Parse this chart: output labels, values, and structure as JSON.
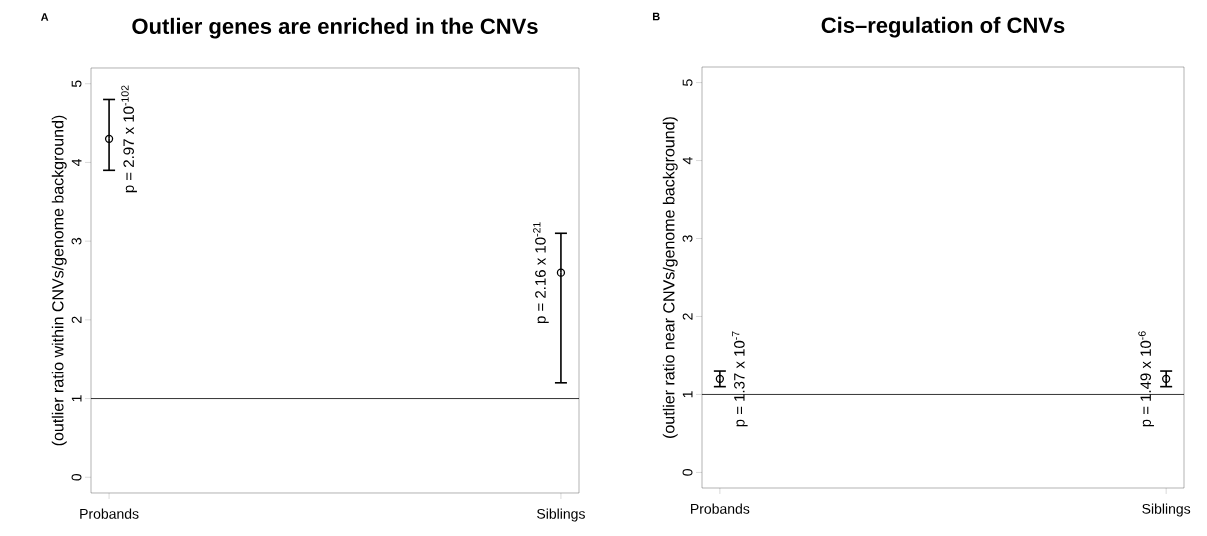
{
  "chart_data": [
    {
      "type": "scatter",
      "title": "Outlier genes are enriched in the CNVs",
      "ylabel": "(outlier ratio within CNVs/genome background)",
      "categories": [
        "Probands",
        "Siblings"
      ],
      "values": [
        4.3,
        2.6
      ],
      "errors": [
        [
          3.9,
          4.8
        ],
        [
          1.2,
          3.1
        ]
      ],
      "color": "#000000",
      "marker": "circle",
      "ylim": [
        -0.2,
        5.2
      ],
      "yticks": [
        0,
        1,
        2,
        3,
        4,
        5
      ],
      "ref_lines": [
        {
          "axis": "y",
          "value": 1,
          "color": "#000000"
        }
      ],
      "annotations": [
        "A",
        {
          "text": "p = 2.97 x 10$^{-102}$",
          "x": "Probands",
          "y": 4.3
        },
        {
          "text": "p = 2.16 x 10$^{-21}$",
          "x": "Siblings",
          "y": 2.6
        }
      ]
    },
    {
      "type": "scatter",
      "title": "Cis–regulation of CNVs",
      "ylabel": "(outlier ratio near CNVs/genome background)",
      "categories": [
        "Probands",
        "Siblings"
      ],
      "values": [
        1.2,
        1.2
      ],
      "errors": [
        [
          1.1,
          1.3
        ],
        [
          1.1,
          1.3
        ]
      ],
      "color": "#000000",
      "marker": "circle",
      "ylim": [
        -0.2,
        5.2
      ],
      "yticks": [
        0,
        1,
        2,
        3,
        4,
        5
      ],
      "ref_lines": [
        {
          "axis": "y",
          "value": 1,
          "color": "#000000"
        }
      ],
      "annotations": [
        "B",
        {
          "text": "p = 1.37 x 10$^{-7}$",
          "x": "Probands",
          "y": 1.2
        },
        {
          "text": "p = 1.49 x 10$^{-6}$",
          "x": "Siblings",
          "y": 1.2
        }
      ]
    }
  ]
}
